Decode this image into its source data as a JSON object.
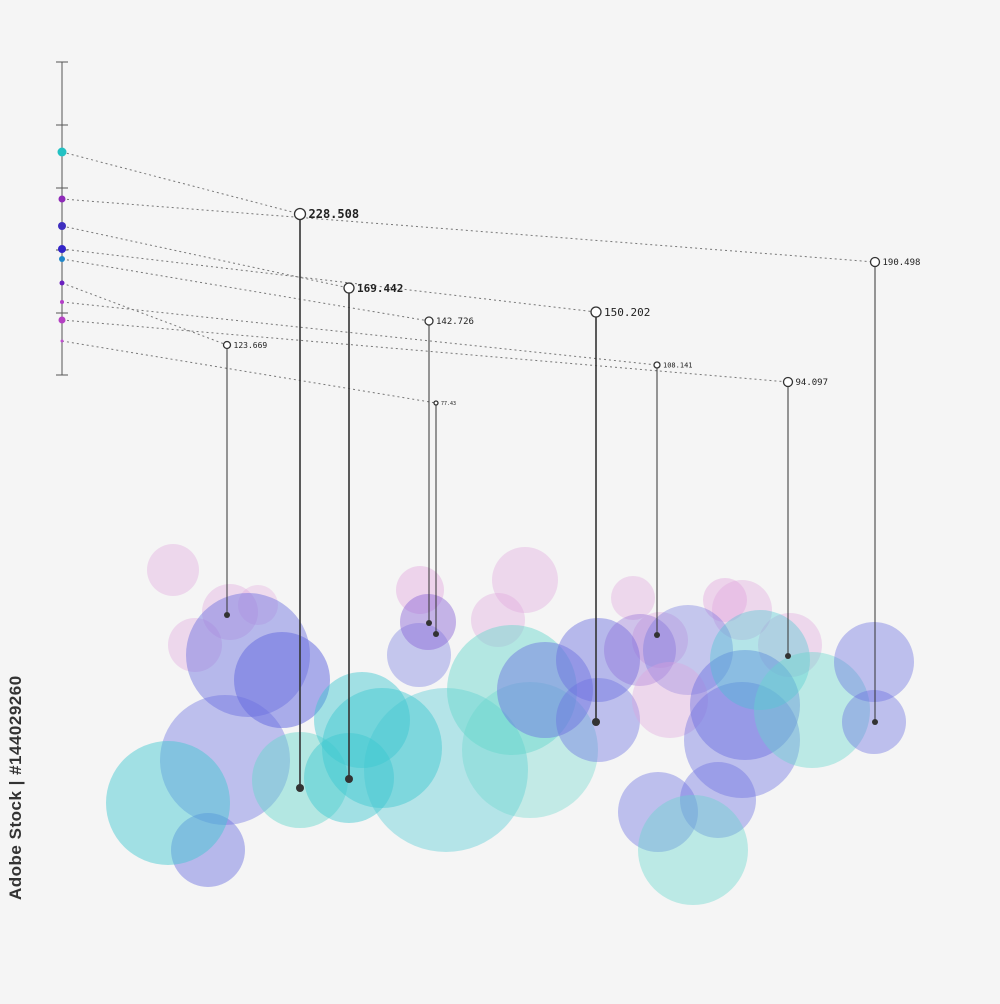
{
  "chart_data": {
    "type": "bubble-drop",
    "title": "",
    "drops": [
      {
        "value": 228.508
      },
      {
        "value": 169.442
      },
      {
        "value": 142.726
      },
      {
        "value": 150.202
      },
      {
        "value": 123.669
      },
      {
        "value": 108.141
      },
      {
        "value": 94.097
      },
      {
        "value": 190.498
      },
      {
        "value": 77.43
      }
    ],
    "scale_dots": [
      {
        "color": "#22c1c3"
      },
      {
        "color": "#3f2fbf"
      },
      {
        "color": "#1f86c9"
      },
      {
        "color": "#3324c8"
      },
      {
        "color": "#6a1fbf"
      },
      {
        "color": "#b33ec7"
      },
      {
        "color": "#b53fc3"
      },
      {
        "color": "#8e2ab8"
      },
      {
        "color": "#c04fd0"
      }
    ],
    "colors": {
      "cyan": "#3cc7d1",
      "blue": "#6a6fe0",
      "violet": "#8a63d8",
      "pink": "#e0a0dc",
      "teal": "#63d8cc"
    }
  },
  "watermark": {
    "id": "Adobe Stock | #144029260"
  }
}
